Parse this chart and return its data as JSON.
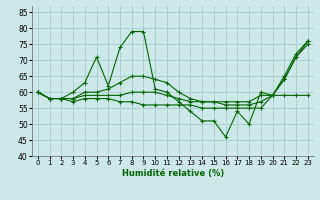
{
  "title": "",
  "xlabel": "Humidité relative (%)",
  "ylabel": "",
  "xlim": [
    -0.5,
    23.5
  ],
  "ylim": [
    40,
    87
  ],
  "yticks": [
    40,
    45,
    50,
    55,
    60,
    65,
    70,
    75,
    80,
    85
  ],
  "xticks": [
    0,
    1,
    2,
    3,
    4,
    5,
    6,
    7,
    8,
    9,
    10,
    11,
    12,
    13,
    14,
    15,
    16,
    17,
    18,
    19,
    20,
    21,
    22,
    23
  ],
  "bg_color": "#cce8e8",
  "grid_color": "#aacccc",
  "line_color": "#006600",
  "marker": "+",
  "lines": [
    [
      60,
      58,
      58,
      60,
      63,
      71,
      62,
      74,
      79,
      79,
      61,
      60,
      57,
      54,
      51,
      51,
      46,
      54,
      50,
      60,
      59,
      64,
      71,
      76
    ],
    [
      60,
      58,
      58,
      58,
      60,
      60,
      61,
      63,
      65,
      65,
      64,
      63,
      60,
      58,
      57,
      57,
      57,
      57,
      57,
      59,
      59,
      65,
      72,
      76
    ],
    [
      60,
      58,
      58,
      58,
      59,
      59,
      59,
      59,
      60,
      60,
      60,
      59,
      58,
      57,
      57,
      57,
      56,
      56,
      56,
      57,
      59,
      64,
      71,
      75
    ],
    [
      60,
      58,
      58,
      57,
      58,
      58,
      58,
      57,
      57,
      56,
      56,
      56,
      56,
      56,
      55,
      55,
      55,
      55,
      55,
      55,
      59,
      59,
      59,
      59
    ]
  ]
}
